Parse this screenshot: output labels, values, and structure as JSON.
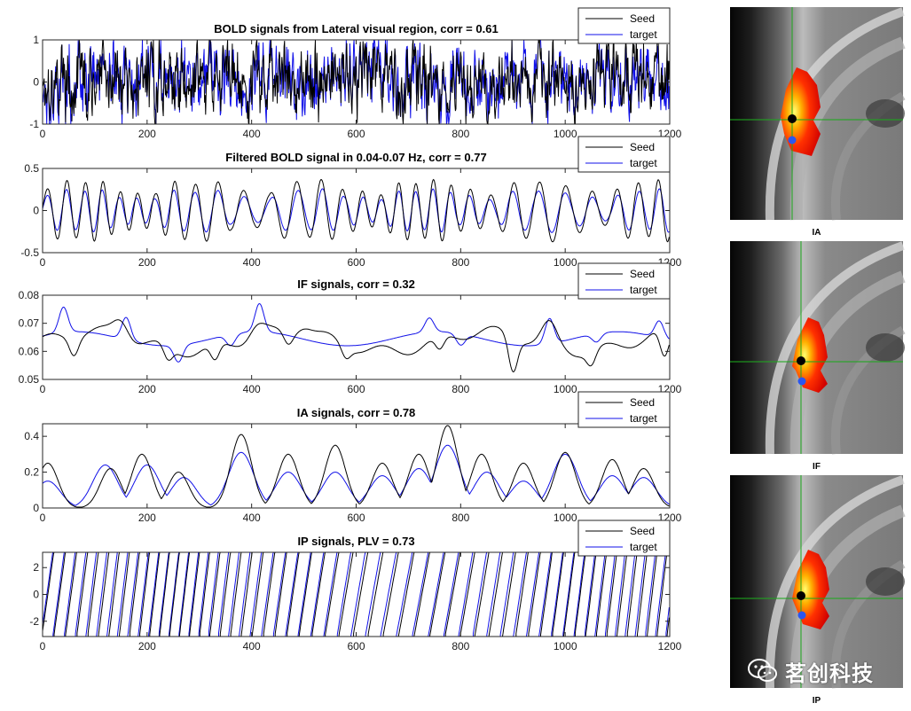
{
  "colors": {
    "seed": "#000000",
    "target": "#1010e8",
    "seed_dot": "#000000",
    "target_dot": "#2a56f0"
  },
  "chart_data": [
    {
      "type": "line",
      "title": "BOLD signals from Lateral visual region, corr = 0.61",
      "xlabel": "",
      "ylabel": "",
      "xlim": [
        0,
        1200
      ],
      "ylim": [
        -1,
        1
      ],
      "xticks": [
        0,
        200,
        400,
        600,
        800,
        1000,
        1200
      ],
      "yticks": [
        -1,
        0,
        1
      ],
      "ytick_labels": [
        "-1",
        "0",
        "1"
      ],
      "signal_kind": "noise",
      "series": [
        {
          "name": "Seed",
          "center": 0.05,
          "amplitude": 0.75
        },
        {
          "name": "target",
          "center": 0.05,
          "amplitude": 0.75
        }
      ],
      "legend": {
        "placement": "top-right",
        "entries": [
          "Seed",
          "target"
        ]
      }
    },
    {
      "type": "line",
      "title": "Filtered BOLD signal in 0.04-0.07 Hz, corr = 0.77",
      "xlabel": "",
      "ylabel": "",
      "xlim": [
        0,
        1200
      ],
      "ylim": [
        -0.5,
        0.5
      ],
      "xticks": [
        0,
        200,
        400,
        600,
        800,
        1000,
        1200
      ],
      "yticks": [
        -0.5,
        0,
        0.5
      ],
      "ytick_labels": [
        "-0.5",
        "0",
        "0.5"
      ],
      "signal_kind": "oscillation",
      "series": [
        {
          "name": "Seed",
          "center": 0,
          "amplitude": 0.38
        },
        {
          "name": "target",
          "center": 0,
          "amplitude": 0.25
        }
      ],
      "legend": {
        "placement": "top-right",
        "entries": [
          "Seed",
          "target"
        ]
      }
    },
    {
      "type": "line",
      "title": "IF signals, corr = 0.32",
      "xlabel": "",
      "ylabel": "",
      "xlim": [
        0,
        1200
      ],
      "ylim": [
        0.05,
        0.08
      ],
      "xticks": [
        0,
        200,
        400,
        600,
        800,
        1000,
        1200
      ],
      "yticks": [
        0.05,
        0.06,
        0.07,
        0.08
      ],
      "ytick_labels": [
        "0.05",
        "0.06",
        "0.07",
        "0.08"
      ],
      "signal_kind": "smooth",
      "series": [
        {
          "name": "Seed",
          "center": 0.0635,
          "amplitude": 0.008
        },
        {
          "name": "target",
          "center": 0.0645,
          "amplitude": 0.007
        }
      ],
      "legend": {
        "placement": "top-right",
        "entries": [
          "Seed",
          "target"
        ]
      }
    },
    {
      "type": "line",
      "title": "IA signals, corr = 0.78",
      "xlabel": "",
      "ylabel": "",
      "xlim": [
        0,
        1200
      ],
      "ylim": [
        0,
        0.47
      ],
      "xticks": [
        0,
        200,
        400,
        600,
        800,
        1000,
        1200
      ],
      "yticks": [
        0,
        0.2,
        0.4
      ],
      "ytick_labels": [
        "0",
        "0.2",
        "0.4"
      ],
      "signal_kind": "envelope",
      "series": [
        {
          "name": "Seed",
          "center": 0.2,
          "amplitude": 0.22
        },
        {
          "name": "target",
          "center": 0.16,
          "amplitude": 0.16
        }
      ],
      "legend": {
        "placement": "top-right",
        "entries": [
          "Seed",
          "target"
        ]
      }
    },
    {
      "type": "line",
      "title": "IP signals, PLV = 0.73",
      "xlabel": "",
      "ylabel": "",
      "xlim": [
        0,
        1200
      ],
      "ylim": [
        -3.14,
        3.14
      ],
      "xticks": [
        0,
        200,
        400,
        600,
        800,
        1000,
        1200
      ],
      "yticks": [
        -2,
        0,
        2
      ],
      "ytick_labels": [
        "-2",
        "0",
        "2"
      ],
      "signal_kind": "sawtooth",
      "series": [
        {
          "name": "Seed",
          "center": 0,
          "amplitude": 3.14
        },
        {
          "name": "target",
          "center": 0,
          "amplitude": 3.14
        }
      ],
      "legend": {
        "placement": "top-right",
        "entries": [
          "Seed",
          "target"
        ]
      }
    }
  ],
  "brain_panels": [
    {
      "label": "IA"
    },
    {
      "label": "IF"
    },
    {
      "label": "IP"
    }
  ],
  "watermark": {
    "text": "茗创科技",
    "icon": "wechat-icon"
  }
}
